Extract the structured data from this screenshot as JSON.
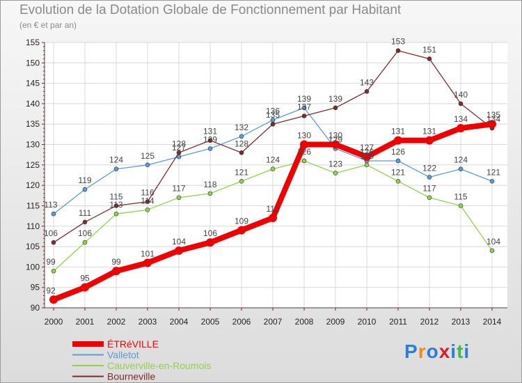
{
  "title": "Evolution de la Dotation Globale de Fonctionnement par Habitant",
  "subtitle": "(en € et par an)",
  "logo": {
    "text": "Proxiti",
    "colors": [
      "#2a7fd4",
      "#f08a1c",
      "#2a7fd4",
      "#d81f26",
      "#2a7fd4",
      "#47b648",
      "#2a7fd4"
    ]
  },
  "chart_data": {
    "type": "line",
    "title": "Evolution de la Dotation Globale de Fonctionnement par Habitant",
    "subtitle": "(en € et par an)",
    "xlabel": "",
    "ylabel": "",
    "x": [
      2000,
      2001,
      2002,
      2003,
      2004,
      2005,
      2006,
      2007,
      2008,
      2009,
      2010,
      2011,
      2012,
      2013,
      2014
    ],
    "ylim": [
      90,
      155
    ],
    "yticks": [
      90,
      95,
      100,
      105,
      110,
      115,
      120,
      125,
      130,
      135,
      140,
      145,
      150,
      155
    ],
    "grid": true,
    "legend": "bottom-left",
    "series": [
      {
        "name": "ÉTRéVILLE",
        "color": "#ee0000",
        "values": [
          92,
          95,
          99,
          101,
          104,
          106,
          109,
          112,
          130,
          130,
          127,
          131,
          131,
          134,
          135
        ]
      },
      {
        "name": "Valletot",
        "color": "#5b9bd5",
        "values": [
          113,
          119,
          124,
          125,
          127,
          129,
          132,
          136,
          139,
          129,
          126,
          126,
          122,
          124,
          121
        ]
      },
      {
        "name": "Cauverville-en-Roumois",
        "color": "#92d050",
        "values": [
          99,
          106,
          113,
          114,
          117,
          118,
          121,
          124,
          126,
          123,
          125,
          121,
          117,
          115,
          104
        ]
      },
      {
        "name": "Bourneville",
        "color": "#7b2c2c",
        "values": [
          106,
          111,
          115,
          116,
          128,
          131,
          128,
          135,
          137,
          139,
          143,
          153,
          151,
          140,
          134
        ]
      }
    ]
  }
}
